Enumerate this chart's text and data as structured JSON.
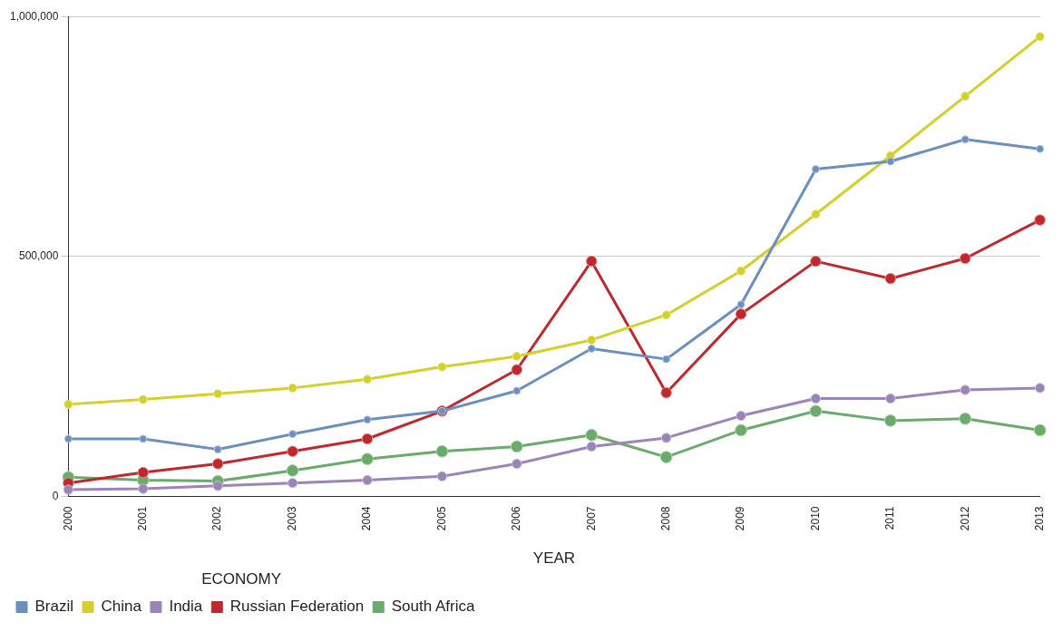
{
  "chart_data": {
    "type": "line",
    "xlabel": "YEAR",
    "legend_title": "ECONOMY",
    "categories": [
      "2000",
      "2001",
      "2002",
      "2003",
      "2004",
      "2005",
      "2006",
      "2007",
      "2008",
      "2009",
      "2010",
      "2011",
      "2012",
      "2013"
    ],
    "series": [
      {
        "name": "Brazil",
        "color": "#6b8fbf",
        "values": [
          120000,
          120000,
          98000,
          130000,
          160000,
          178000,
          220000,
          308000,
          286000,
          400000,
          682000,
          698000,
          744000,
          724000
        ]
      },
      {
        "name": "China",
        "color": "#d4d02a",
        "values": [
          192000,
          202000,
          214000,
          226000,
          244000,
          270000,
          292000,
          326000,
          378000,
          470000,
          588000,
          710000,
          834000,
          958000
        ]
      },
      {
        "name": "India",
        "color": "#9b84b8",
        "values": [
          14000,
          16000,
          22000,
          28000,
          34000,
          42000,
          68000,
          104000,
          122000,
          168000,
          204000,
          204000,
          222000,
          226000
        ]
      },
      {
        "name": "Russian Federation",
        "color": "#c0282e",
        "values": [
          28000,
          50000,
          68000,
          94000,
          120000,
          178000,
          264000,
          490000,
          216000,
          380000,
          490000,
          454000,
          496000,
          576000
        ]
      },
      {
        "name": "South Africa",
        "color": "#6aaa6a",
        "values": [
          40000,
          34000,
          32000,
          54000,
          78000,
          94000,
          104000,
          128000,
          82000,
          138000,
          178000,
          158000,
          162000,
          138000
        ]
      }
    ],
    "ylim": [
      0,
      1000000
    ],
    "yticks": [
      {
        "value": 0,
        "label": "0"
      },
      {
        "value": 500000,
        "label": "500,000"
      },
      {
        "value": 1000000,
        "label": "1,000,000"
      }
    ],
    "grid": "y",
    "legend": "bottom",
    "marker": "circle",
    "line_style": "solid"
  }
}
